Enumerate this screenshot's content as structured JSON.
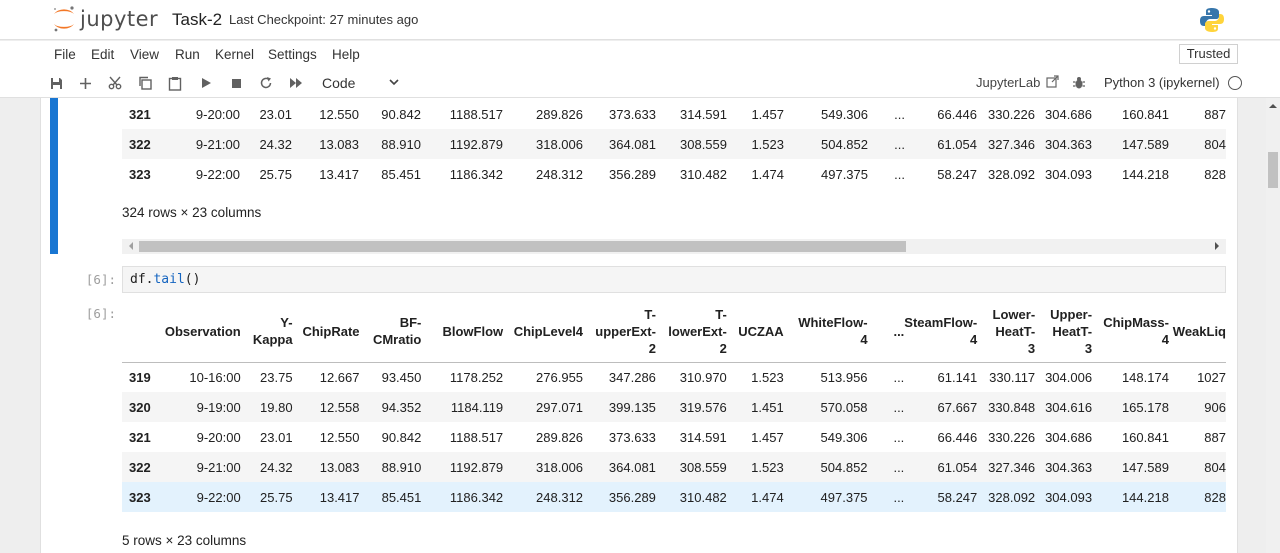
{
  "app": {
    "logo_text": "jupyter",
    "notebook_title": "Task-2",
    "checkpoint": "Last Checkpoint: 27 minutes ago"
  },
  "menu": [
    "File",
    "Edit",
    "View",
    "Run",
    "Kernel",
    "Settings",
    "Help"
  ],
  "trusted": "Trusted",
  "toolbar": {
    "cell_type": "Code",
    "jupyterlab_label": "JupyterLab",
    "kernel": "Python 3 (ipykernel)"
  },
  "cell_prev_output": {
    "rows": [
      [
        "321",
        "9-20:00",
        "23.01",
        "12.550",
        "90.842",
        "1188.517",
        "289.826",
        "373.633",
        "314.591",
        "1.457",
        "549.306",
        "...",
        "66.446",
        "330.226",
        "304.686",
        "160.841",
        "887"
      ],
      [
        "322",
        "9-21:00",
        "24.32",
        "13.083",
        "88.910",
        "1192.879",
        "318.006",
        "364.081",
        "308.559",
        "1.523",
        "504.852",
        "...",
        "61.054",
        "327.346",
        "304.363",
        "147.589",
        "804"
      ],
      [
        "323",
        "9-22:00",
        "25.75",
        "13.417",
        "85.451",
        "1186.342",
        "248.312",
        "356.289",
        "310.482",
        "1.474",
        "497.375",
        "...",
        "58.247",
        "328.092",
        "304.093",
        "144.218",
        "828"
      ]
    ],
    "rows_info": "324 rows × 23 columns"
  },
  "cell6": {
    "prompt_in": "[6]:",
    "code_var": "df",
    "code_fn": "tail",
    "code_rest": "()",
    "prompt_out": "[6]:",
    "headers": [
      [
        "Observation"
      ],
      [
        "Y-",
        "Kappa"
      ],
      [
        "ChipRate"
      ],
      [
        "BF-",
        "CMratio"
      ],
      [
        "BlowFlow"
      ],
      [
        "ChipLevel4"
      ],
      [
        "T-",
        "upperExt-",
        "2"
      ],
      [
        "T-",
        "lowerExt-",
        "2"
      ],
      [
        "UCZAA"
      ],
      [
        "WhiteFlow-",
        "4"
      ],
      [
        "..."
      ],
      [
        "SteamFlow-",
        "4"
      ],
      [
        "Lower-",
        "HeatT-",
        "3"
      ],
      [
        "Upper-",
        "HeatT-",
        "3"
      ],
      [
        "ChipMass-",
        "4"
      ],
      [
        "WeakLiq"
      ]
    ],
    "rows": [
      [
        "319",
        "10-16:00",
        "23.75",
        "12.667",
        "93.450",
        "1178.252",
        "276.955",
        "347.286",
        "310.970",
        "1.523",
        "513.956",
        "...",
        "61.141",
        "330.117",
        "304.006",
        "148.174",
        "1027"
      ],
      [
        "320",
        "9-19:00",
        "19.80",
        "12.558",
        "94.352",
        "1184.119",
        "297.071",
        "399.135",
        "319.576",
        "1.451",
        "570.058",
        "...",
        "67.667",
        "330.848",
        "304.616",
        "165.178",
        "906"
      ],
      [
        "321",
        "9-20:00",
        "23.01",
        "12.550",
        "90.842",
        "1188.517",
        "289.826",
        "373.633",
        "314.591",
        "1.457",
        "549.306",
        "...",
        "66.446",
        "330.226",
        "304.686",
        "160.841",
        "887"
      ],
      [
        "322",
        "9-21:00",
        "24.32",
        "13.083",
        "88.910",
        "1192.879",
        "318.006",
        "364.081",
        "308.559",
        "1.523",
        "504.852",
        "...",
        "61.054",
        "327.346",
        "304.363",
        "147.589",
        "804"
      ],
      [
        "323",
        "9-22:00",
        "25.75",
        "13.417",
        "85.451",
        "1186.342",
        "248.312",
        "356.289",
        "310.482",
        "1.474",
        "497.375",
        "...",
        "58.247",
        "328.092",
        "304.093",
        "144.218",
        "828"
      ]
    ],
    "rows_info": "5 rows × 23 columns"
  }
}
